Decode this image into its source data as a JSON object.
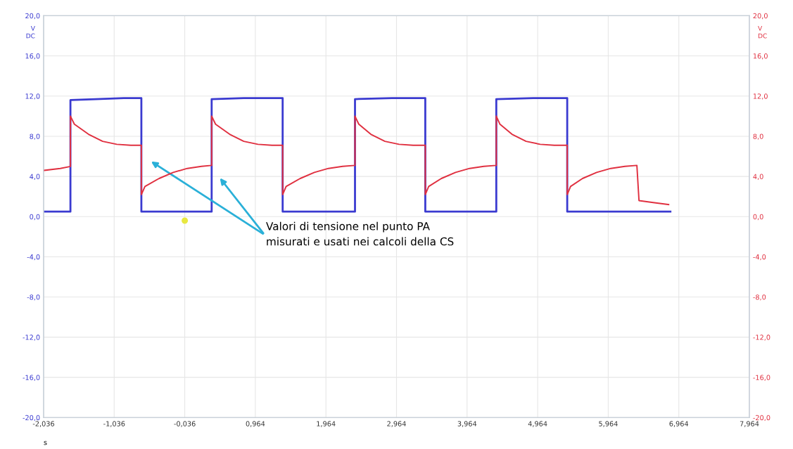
{
  "chart_data": {
    "type": "line",
    "xlabel": "s",
    "ylabel": "V\nDC",
    "y2label": "V\nDC",
    "annotations": [
      "Valori di tensione nel punto PA\nmisurati e usati nei calcoli della CS"
    ],
    "series": [
      {
        "color": "#3a3ad0",
        "x": [
          -2.036,
          -1.656,
          -1.656,
          -1.3,
          -0.9,
          -0.651,
          -0.651,
          0.345,
          0.345,
          0.8,
          1.351,
          1.351,
          2.376,
          2.376,
          2.9,
          3.372,
          3.372,
          4.378,
          4.378,
          4.9,
          5.383,
          5.383,
          6.845
        ],
        "values": [
          0.5,
          0.5,
          11.6,
          11.7,
          11.8,
          11.8,
          0.5,
          0.5,
          11.7,
          11.8,
          11.8,
          0.5,
          0.5,
          11.7,
          11.8,
          11.8,
          0.5,
          0.5,
          11.7,
          11.8,
          11.8,
          0.5,
          0.5
        ]
      },
      {
        "color": "#e03040",
        "axis": "y2",
        "x": [
          -2.036,
          -1.8,
          -1.656,
          -1.656,
          -1.6,
          -1.4,
          -1.2,
          -1.0,
          -0.8,
          -0.651,
          -0.651,
          -0.6,
          -0.4,
          -0.2,
          0.0,
          0.2,
          0.345,
          0.345,
          0.4,
          0.6,
          0.8,
          1.0,
          1.2,
          1.351,
          1.351,
          1.4,
          1.6,
          1.8,
          2.0,
          2.2,
          2.376,
          2.376,
          2.43,
          2.6,
          2.8,
          3.0,
          3.2,
          3.372,
          3.372,
          3.42,
          3.6,
          3.8,
          4.0,
          4.2,
          4.378,
          4.378,
          4.43,
          4.6,
          4.8,
          5.0,
          5.2,
          5.383,
          5.383,
          5.43,
          5.6,
          5.8,
          6.0,
          6.2,
          6.37,
          6.4,
          6.6,
          6.82
        ],
        "values": [
          4.6,
          4.8,
          5.0,
          10.0,
          9.2,
          8.2,
          7.5,
          7.2,
          7.1,
          7.1,
          2.2,
          3.0,
          3.8,
          4.4,
          4.8,
          5.0,
          5.1,
          10.0,
          9.2,
          8.2,
          7.5,
          7.2,
          7.1,
          7.1,
          2.2,
          3.0,
          3.8,
          4.4,
          4.8,
          5.0,
          5.1,
          10.0,
          9.2,
          8.2,
          7.5,
          7.2,
          7.1,
          7.1,
          2.2,
          3.0,
          3.8,
          4.4,
          4.8,
          5.0,
          5.1,
          10.0,
          9.2,
          8.2,
          7.5,
          7.2,
          7.1,
          7.1,
          2.2,
          3.0,
          3.8,
          4.4,
          4.8,
          5.0,
          5.1,
          1.6,
          1.4,
          1.2
        ]
      }
    ],
    "xlim": [
      -2.036,
      7.964
    ],
    "xticks": [
      {
        "value": -2.036,
        "label": "-2,036"
      },
      {
        "value": -1.036,
        "label": "-1,036"
      },
      {
        "value": -0.036,
        "label": "-0,036"
      },
      {
        "value": 0.964,
        "label": "0,964"
      },
      {
        "value": 1.964,
        "label": "1,964"
      },
      {
        "value": 2.964,
        "label": "2,964"
      },
      {
        "value": 3.964,
        "label": "3,964"
      },
      {
        "value": 4.964,
        "label": "4,964"
      },
      {
        "value": 5.964,
        "label": "5,964"
      },
      {
        "value": 6.964,
        "label": "6,964"
      },
      {
        "value": 7.964,
        "label": "7,964"
      }
    ],
    "ylim": [
      -20,
      20
    ],
    "yticks": [
      {
        "value": -20,
        "label": "-20,0"
      },
      {
        "value": -16,
        "label": "-16,0"
      },
      {
        "value": -12,
        "label": "-12,0"
      },
      {
        "value": -8,
        "label": "-8,0"
      },
      {
        "value": -4,
        "label": "-4,0"
      },
      {
        "value": 0,
        "label": "0,0"
      },
      {
        "value": 4,
        "label": "4,0"
      },
      {
        "value": 8,
        "label": "8,0"
      },
      {
        "value": 12,
        "label": "12,0"
      },
      {
        "value": 16,
        "label": "16,0"
      },
      {
        "value": 20,
        "label": "20,0"
      }
    ],
    "y2lim": [
      -20,
      20
    ],
    "y2ticks": [
      {
        "value": -20,
        "label": "-20,0"
      },
      {
        "value": -16,
        "label": "-16,0"
      },
      {
        "value": -12,
        "label": "-12,0"
      },
      {
        "value": -8,
        "label": "-8,0"
      },
      {
        "value": -4,
        "label": "-4,0"
      },
      {
        "value": 0,
        "label": "0,0"
      },
      {
        "value": 4,
        "label": "4,0"
      },
      {
        "value": 8,
        "label": "8,0"
      },
      {
        "value": 12,
        "label": "12,0"
      },
      {
        "value": 16,
        "label": "16,0"
      },
      {
        "value": 20,
        "label": "20,0"
      }
    ],
    "grid": true,
    "marker": "none",
    "line_style": "solid"
  }
}
